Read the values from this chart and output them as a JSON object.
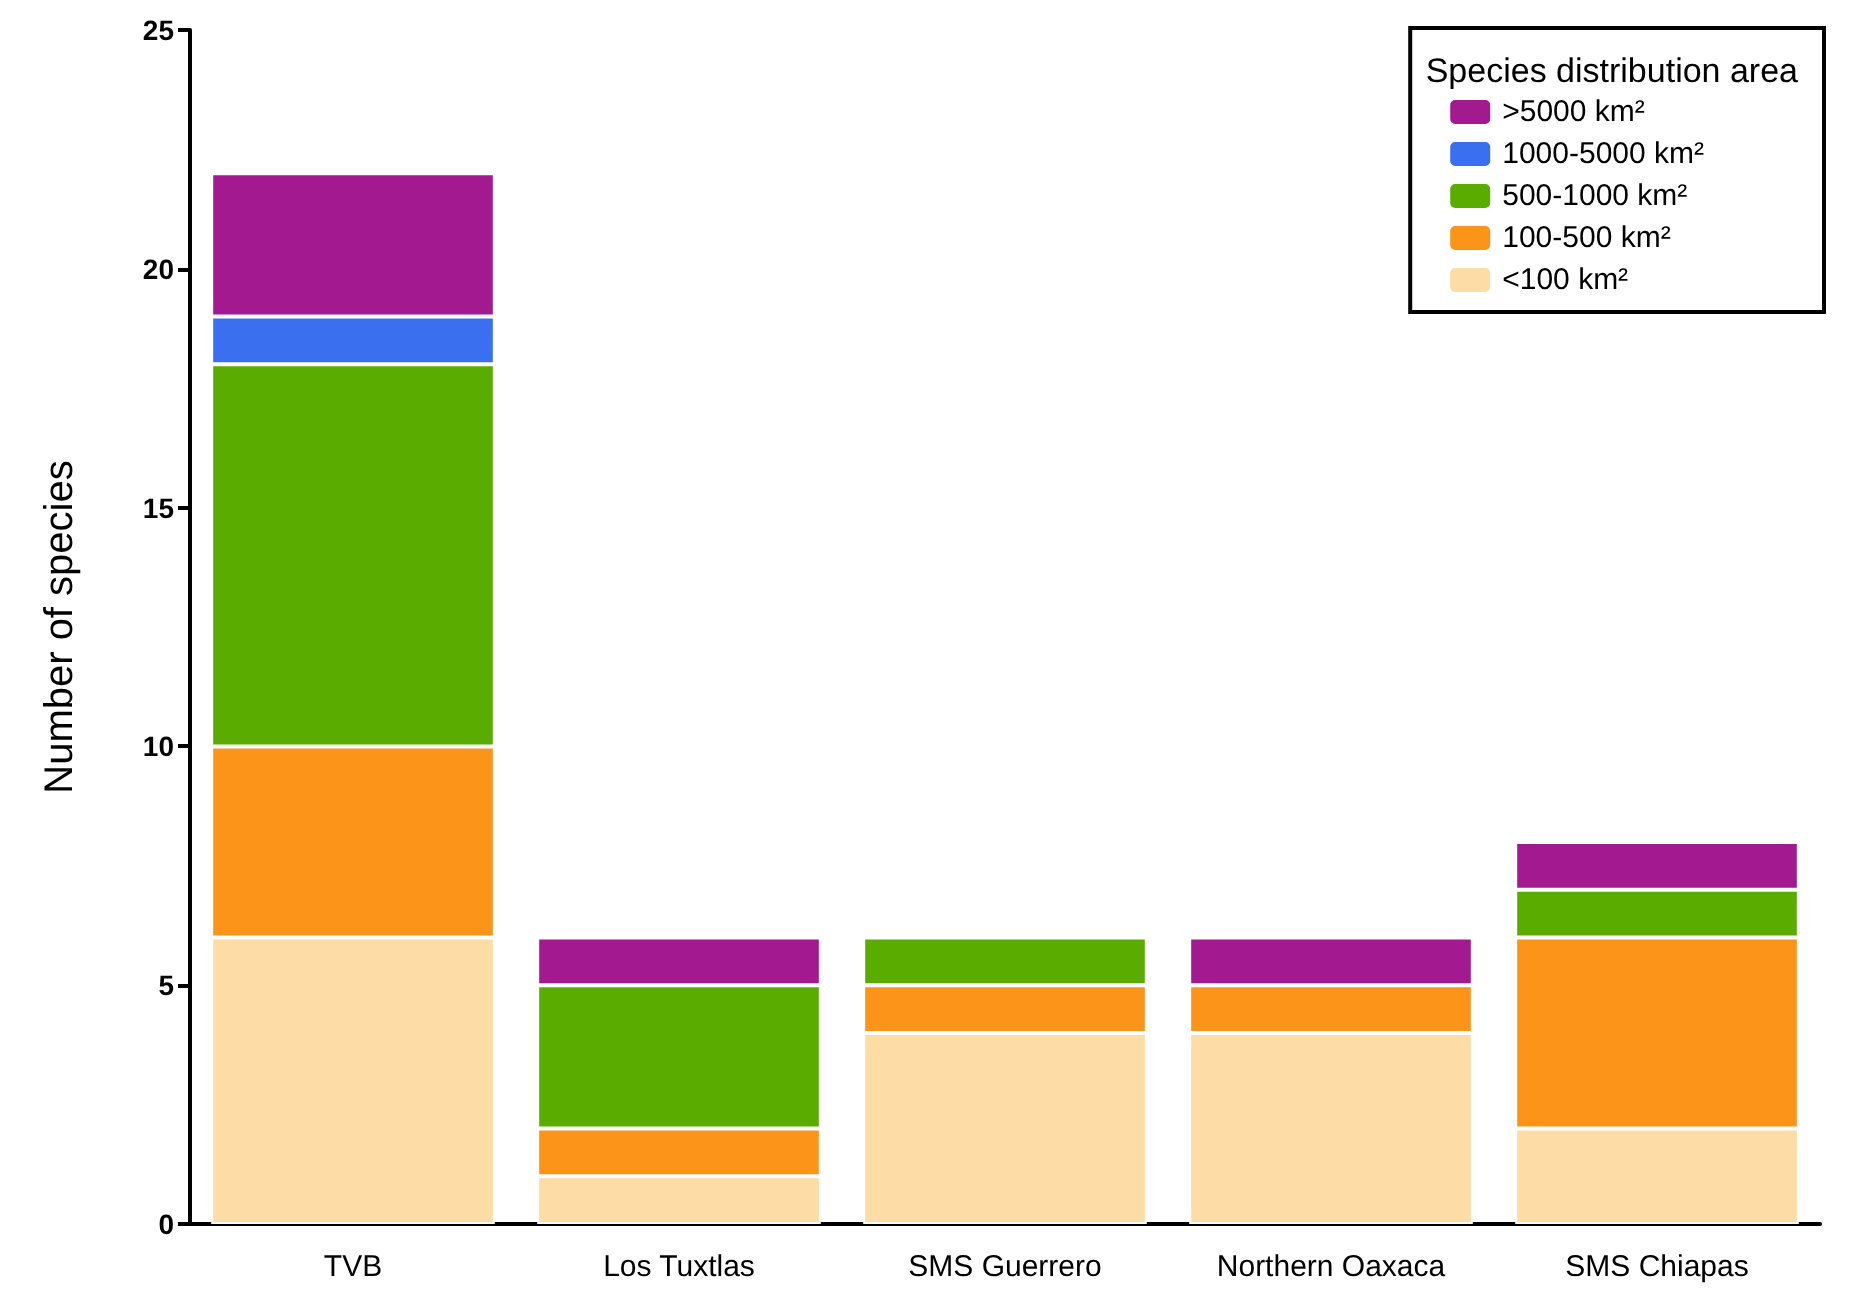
{
  "chart_data": {
    "type": "bar",
    "stacked": true,
    "ylabel": "Number of species",
    "legend_title": "Species distribution area",
    "categories": [
      "TVB",
      "Los Tuxtlas",
      "SMS Guerrero",
      "Northern Oaxaca",
      "SMS Chiapas"
    ],
    "series": [
      {
        "name": "<100 km²",
        "color": "#fddca5",
        "values": [
          6,
          1,
          4,
          4,
          2
        ]
      },
      {
        "name": "100-500 km²",
        "color": "#fb9419",
        "values": [
          4,
          1,
          1,
          1,
          4
        ]
      },
      {
        "name": "500-1000 km²",
        "color": "#5aad00",
        "values": [
          8,
          3,
          1,
          0,
          1
        ]
      },
      {
        "name": "1000-5000 km²",
        "color": "#3a6ff0",
        "values": [
          1,
          0,
          0,
          0,
          0
        ]
      },
      {
        "name": ">5000 km²",
        "color": "#a3198f",
        "values": [
          3,
          1,
          0,
          1,
          1
        ]
      }
    ],
    "ylim": [
      0,
      25
    ],
    "yticks": [
      0,
      5,
      10,
      15,
      20,
      25
    ],
    "grid": false,
    "legend": "top right"
  }
}
